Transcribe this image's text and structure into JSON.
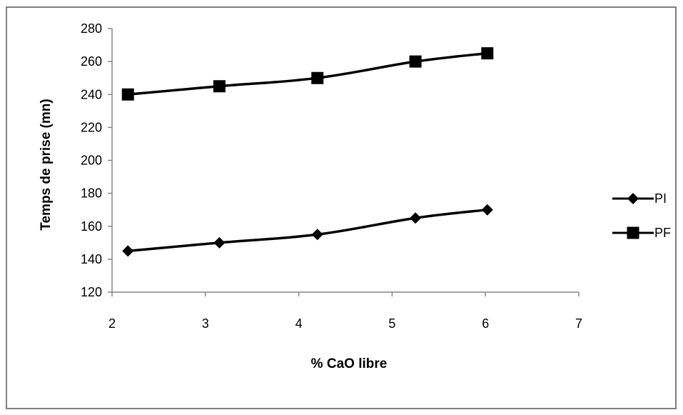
{
  "chart_data": {
    "type": "line",
    "title": "",
    "xlabel": "% CaO libre",
    "ylabel": "Temps de prise (mn)",
    "xlim": [
      2,
      7
    ],
    "ylim": [
      120,
      280
    ],
    "x_ticks": [
      2,
      3,
      4,
      5,
      6,
      7
    ],
    "y_ticks": [
      120,
      140,
      160,
      180,
      200,
      220,
      240,
      260,
      280
    ],
    "grid": false,
    "legend_position": "right",
    "series": [
      {
        "name": "PI",
        "marker": "diamond",
        "color": "#000000",
        "x": [
          2.17,
          3.15,
          4.2,
          5.25,
          6.02
        ],
        "y": [
          145,
          150,
          155,
          165,
          170
        ]
      },
      {
        "name": "PF",
        "marker": "square",
        "color": "#000000",
        "x": [
          2.17,
          3.15,
          4.2,
          5.25,
          6.02
        ],
        "y": [
          240,
          245,
          250,
          260,
          265
        ]
      }
    ]
  }
}
